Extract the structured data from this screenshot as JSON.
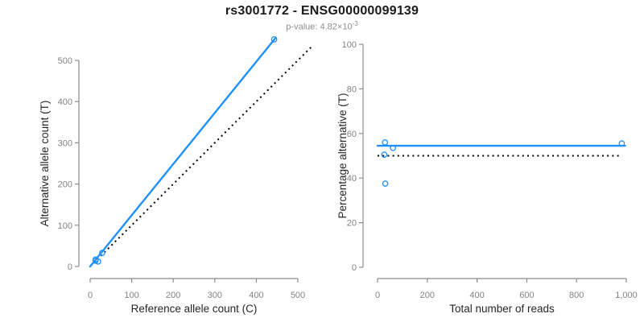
{
  "header": {
    "title": "rs3001772 - ENSG00000099139",
    "subtitle_prefix": "p-value: 4.82×10",
    "subtitle_exponent": "-3"
  },
  "style": {
    "accent_blue": "#1e90ff",
    "ref_line_color": "#000000",
    "axis_color": "#8c8c8c",
    "tick_label_color": "#828282",
    "axis_title_color": "#262626",
    "title_color": "#1a1a1a",
    "subtitle_color": "#8e8e8e"
  },
  "chart_data": [
    {
      "type": "scatter",
      "title": "",
      "xlabel": "Reference allele count (C)",
      "ylabel": "Alternative allele count (T)",
      "xlim": [
        0,
        500
      ],
      "ylim": [
        0,
        500
      ],
      "xticks": [
        0,
        100,
        200,
        300,
        400,
        500
      ],
      "xtick_labels": [
        "0",
        "100",
        "200",
        "300",
        "400",
        "500"
      ],
      "yticks": [
        0,
        100,
        200,
        300,
        400,
        500
      ],
      "ytick_labels": [
        "0",
        "100",
        "200",
        "300",
        "400",
        "500"
      ],
      "grid": false,
      "legend": "none",
      "points": [
        [
          13,
          17
        ],
        [
          13,
          14
        ],
        [
          19,
          12
        ],
        [
          29,
          33
        ],
        [
          443,
          551
        ]
      ],
      "fit_line": {
        "name": "fitted-regression-line",
        "style": "solid",
        "from": [
          0,
          0
        ],
        "to": [
          446,
          554
        ]
      },
      "identity_line": {
        "name": "identity-reference-line",
        "style": "dotted",
        "from": [
          0,
          0
        ],
        "to": [
          533,
          533
        ]
      }
    },
    {
      "type": "scatter",
      "title": "",
      "xlabel": "Total number of reads",
      "ylabel": "Percentage alternative (T)",
      "xlim": [
        0,
        1000
      ],
      "ylim": [
        0,
        100
      ],
      "xticks": [
        0,
        200,
        400,
        600,
        800,
        1000
      ],
      "xtick_labels": [
        "0",
        "200",
        "400",
        "600",
        "800",
        "1,000"
      ],
      "yticks": [
        0,
        20,
        40,
        60,
        80,
        100
      ],
      "ytick_labels": [
        "0",
        "20",
        "40",
        "60",
        "80",
        "100"
      ],
      "grid": false,
      "legend": "none",
      "points": [
        [
          30,
          56
        ],
        [
          27,
          50.5
        ],
        [
          62,
          53.5
        ],
        [
          31,
          37.5
        ],
        [
          982,
          55.5
        ]
      ],
      "fit_line": {
        "name": "fitted-mean-line",
        "style": "solid",
        "from": [
          0,
          54.5
        ],
        "to": [
          995,
          54.5
        ]
      },
      "identity_line": {
        "name": "fifty-percent-reference-line",
        "style": "dotted",
        "from": [
          0,
          50
        ],
        "to": [
          980,
          50
        ]
      }
    }
  ]
}
